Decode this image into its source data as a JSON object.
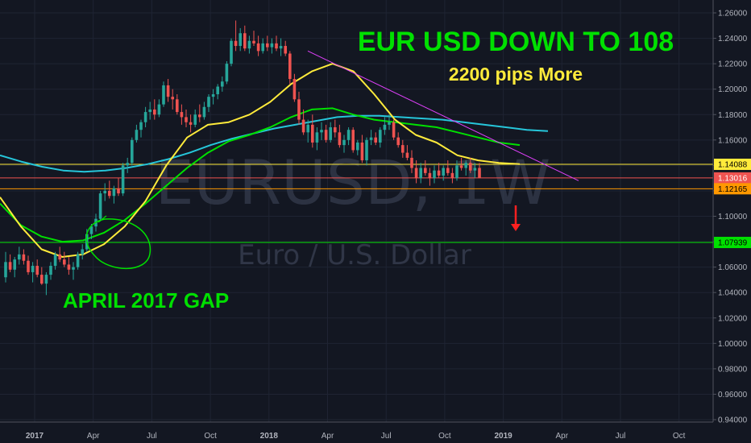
{
  "chart_data": {
    "type": "candlestick",
    "symbol": "EURUSD, 1W",
    "watermark_title": "EURUSD, 1W",
    "watermark_subtitle": "Euro / U.S. Dollar",
    "headline": "EUR USD DOWN TO 108",
    "subheadline": "2200 pips More",
    "gap_label": "APRIL 2017 GAP",
    "y_ticks": [
      "1.26000",
      "1.24000",
      "1.22000",
      "1.20000",
      "1.18000",
      "1.16000",
      "1.14000",
      "1.12000",
      "1.10000",
      "1.08000",
      "1.06000",
      "1.04000",
      "1.02000",
      "1.00000",
      "0.98000",
      "0.96000",
      "0.94000"
    ],
    "ylim": [
      0.94,
      1.26
    ],
    "x_ticks": [
      "2017",
      "Apr",
      "Jul",
      "Oct",
      "2018",
      "Apr",
      "Jul",
      "Oct",
      "2019",
      "Apr",
      "Jul",
      "Oct"
    ],
    "bold_x_ticks": [
      "2017",
      "2018",
      "2019"
    ],
    "price_labels": [
      {
        "value": 1.14088,
        "text": "1.14088",
        "color": "#ffeb3b",
        "text_color": "#000000"
      },
      {
        "value": 1.13016,
        "text": "1.13016",
        "color": "#ef5350",
        "text_color": "#ffffff"
      },
      {
        "value": 1.12165,
        "text": "1.12165",
        "color": "#ff9800",
        "text_color": "#000000"
      },
      {
        "value": 1.07939,
        "text": "1.07939",
        "color": "#00e000",
        "text_color": "#000000"
      }
    ],
    "horizontal_lines": [
      {
        "value": 1.14088,
        "color": "#ffeb3b"
      },
      {
        "value": 1.13016,
        "color": "#ef5350"
      },
      {
        "value": 1.12165,
        "color": "#ff9800"
      },
      {
        "value": 1.07939,
        "color": "#00e000"
      }
    ],
    "candles": [
      [
        1.052,
        1.072,
        1.048,
        1.064
      ],
      [
        1.064,
        1.07,
        1.056,
        1.058
      ],
      [
        1.058,
        1.068,
        1.052,
        1.066
      ],
      [
        1.066,
        1.076,
        1.062,
        1.07
      ],
      [
        1.07,
        1.074,
        1.062,
        1.065
      ],
      [
        1.065,
        1.069,
        1.054,
        1.056
      ],
      [
        1.056,
        1.064,
        1.048,
        1.061
      ],
      [
        1.061,
        1.066,
        1.052,
        1.054
      ],
      [
        1.054,
        1.06,
        1.046,
        1.047
      ],
      [
        1.047,
        1.056,
        1.038,
        1.054
      ],
      [
        1.054,
        1.064,
        1.05,
        1.061
      ],
      [
        1.061,
        1.072,
        1.058,
        1.07
      ],
      [
        1.07,
        1.076,
        1.064,
        1.066
      ],
      [
        1.066,
        1.072,
        1.06,
        1.062
      ],
      [
        1.062,
        1.068,
        1.054,
        1.058
      ],
      [
        1.058,
        1.064,
        1.05,
        1.06
      ],
      [
        1.06,
        1.072,
        1.058,
        1.07
      ],
      [
        1.07,
        1.078,
        1.066,
        1.074
      ],
      [
        1.074,
        1.09,
        1.072,
        1.086
      ],
      [
        1.086,
        1.094,
        1.082,
        1.092
      ],
      [
        1.092,
        1.102,
        1.088,
        1.098
      ],
      [
        1.098,
        1.12,
        1.096,
        1.118
      ],
      [
        1.118,
        1.126,
        1.112,
        1.12
      ],
      [
        1.12,
        1.128,
        1.114,
        1.116
      ],
      [
        1.116,
        1.124,
        1.11,
        1.122
      ],
      [
        1.122,
        1.13,
        1.116,
        1.118
      ],
      [
        1.118,
        1.142,
        1.116,
        1.14
      ],
      [
        1.14,
        1.146,
        1.134,
        1.142
      ],
      [
        1.142,
        1.162,
        1.14,
        1.16
      ],
      [
        1.16,
        1.172,
        1.158,
        1.168
      ],
      [
        1.168,
        1.176,
        1.162,
        1.174
      ],
      [
        1.174,
        1.186,
        1.17,
        1.182
      ],
      [
        1.182,
        1.19,
        1.176,
        1.184
      ],
      [
        1.184,
        1.192,
        1.176,
        1.18
      ],
      [
        1.18,
        1.192,
        1.178,
        1.188
      ],
      [
        1.188,
        1.206,
        1.186,
        1.203
      ],
      [
        1.203,
        1.208,
        1.19,
        1.194
      ],
      [
        1.194,
        1.2,
        1.184,
        1.192
      ],
      [
        1.192,
        1.196,
        1.18,
        1.182
      ],
      [
        1.182,
        1.188,
        1.172,
        1.178
      ],
      [
        1.178,
        1.184,
        1.17,
        1.174
      ],
      [
        1.174,
        1.18,
        1.166,
        1.172
      ],
      [
        1.172,
        1.184,
        1.17,
        1.18
      ],
      [
        1.18,
        1.188,
        1.174,
        1.178
      ],
      [
        1.178,
        1.19,
        1.176,
        1.186
      ],
      [
        1.186,
        1.196,
        1.182,
        1.194
      ],
      [
        1.194,
        1.2,
        1.188,
        1.196
      ],
      [
        1.196,
        1.204,
        1.192,
        1.202
      ],
      [
        1.202,
        1.21,
        1.198,
        1.206
      ],
      [
        1.206,
        1.222,
        1.204,
        1.22
      ],
      [
        1.22,
        1.24,
        1.218,
        1.238
      ],
      [
        1.238,
        1.254,
        1.23,
        1.234
      ],
      [
        1.234,
        1.248,
        1.23,
        1.244
      ],
      [
        1.244,
        1.25,
        1.23,
        1.232
      ],
      [
        1.232,
        1.242,
        1.228,
        1.238
      ],
      [
        1.238,
        1.246,
        1.234,
        1.236
      ],
      [
        1.236,
        1.242,
        1.226,
        1.23
      ],
      [
        1.23,
        1.24,
        1.228,
        1.236
      ],
      [
        1.236,
        1.242,
        1.23,
        1.233
      ],
      [
        1.233,
        1.24,
        1.228,
        1.236
      ],
      [
        1.236,
        1.242,
        1.23,
        1.232
      ],
      [
        1.232,
        1.24,
        1.226,
        1.234
      ],
      [
        1.234,
        1.238,
        1.226,
        1.228
      ],
      [
        1.228,
        1.23,
        1.204,
        1.208
      ],
      [
        1.208,
        1.212,
        1.19,
        1.192
      ],
      [
        1.192,
        1.198,
        1.172,
        1.176
      ],
      [
        1.176,
        1.184,
        1.164,
        1.166
      ],
      [
        1.166,
        1.176,
        1.158,
        1.172
      ],
      [
        1.172,
        1.18,
        1.154,
        1.158
      ],
      [
        1.158,
        1.17,
        1.152,
        1.166
      ],
      [
        1.166,
        1.174,
        1.16,
        1.168
      ],
      [
        1.168,
        1.172,
        1.158,
        1.16
      ],
      [
        1.16,
        1.174,
        1.158,
        1.17
      ],
      [
        1.17,
        1.176,
        1.162,
        1.166
      ],
      [
        1.166,
        1.172,
        1.154,
        1.156
      ],
      [
        1.156,
        1.164,
        1.15,
        1.16
      ],
      [
        1.16,
        1.17,
        1.156,
        1.168
      ],
      [
        1.168,
        1.17,
        1.15,
        1.152
      ],
      [
        1.152,
        1.16,
        1.148,
        1.158
      ],
      [
        1.158,
        1.164,
        1.142,
        1.144
      ],
      [
        1.144,
        1.162,
        1.14,
        1.16
      ],
      [
        1.16,
        1.168,
        1.156,
        1.162
      ],
      [
        1.162,
        1.166,
        1.156,
        1.158
      ],
      [
        1.158,
        1.17,
        1.154,
        1.168
      ],
      [
        1.168,
        1.178,
        1.164,
        1.172
      ],
      [
        1.172,
        1.18,
        1.168,
        1.174
      ],
      [
        1.174,
        1.176,
        1.16,
        1.162
      ],
      [
        1.162,
        1.166,
        1.154,
        1.156
      ],
      [
        1.156,
        1.16,
        1.146,
        1.15
      ],
      [
        1.15,
        1.156,
        1.144,
        1.146
      ],
      [
        1.146,
        1.152,
        1.134,
        1.138
      ],
      [
        1.138,
        1.144,
        1.126,
        1.13
      ],
      [
        1.13,
        1.142,
        1.126,
        1.138
      ],
      [
        1.138,
        1.144,
        1.132,
        1.134
      ],
      [
        1.134,
        1.138,
        1.124,
        1.13
      ],
      [
        1.13,
        1.14,
        1.126,
        1.136
      ],
      [
        1.136,
        1.142,
        1.13,
        1.132
      ],
      [
        1.132,
        1.14,
        1.128,
        1.138
      ],
      [
        1.138,
        1.144,
        1.132,
        1.134
      ],
      [
        1.134,
        1.138,
        1.126,
        1.13
      ],
      [
        1.13,
        1.144,
        1.128,
        1.14
      ],
      [
        1.14,
        1.146,
        1.136,
        1.138
      ],
      [
        1.138,
        1.144,
        1.132,
        1.142
      ],
      [
        1.142,
        1.146,
        1.134,
        1.136
      ],
      [
        1.136,
        1.142,
        1.13,
        1.138
      ],
      [
        1.138,
        1.142,
        1.13,
        1.13
      ]
    ],
    "moving_averages": [
      {
        "color": "#26c6da",
        "values": [
          1.148,
          1.143,
          1.139,
          1.136,
          1.135,
          1.136,
          1.138,
          1.141,
          1.145,
          1.15,
          1.156,
          1.161,
          1.165,
          1.169,
          1.172,
          1.175,
          1.178,
          1.179,
          1.179,
          1.178,
          1.177,
          1.176,
          1.174,
          1.172,
          1.17,
          1.168,
          1.167
        ]
      },
      {
        "color": "#00e000",
        "values": [
          1.11,
          1.093,
          1.084,
          1.08,
          1.081,
          1.087,
          1.097,
          1.11,
          1.124,
          1.138,
          1.15,
          1.159,
          1.164,
          1.17,
          1.178,
          1.184,
          1.185,
          1.18,
          1.176,
          1.174,
          1.172,
          1.17,
          1.166,
          1.162,
          1.158,
          1.156
        ]
      },
      {
        "color": "#ffeb3b",
        "values": [
          1.115,
          1.092,
          1.074,
          1.068,
          1.07,
          1.078,
          1.092,
          1.112,
          1.14,
          1.162,
          1.172,
          1.174,
          1.18,
          1.19,
          1.204,
          1.214,
          1.22,
          1.214,
          1.196,
          1.176,
          1.164,
          1.158,
          1.148,
          1.144,
          1.142,
          1.141
        ]
      }
    ],
    "trendline": {
      "color": "#e040fb"
    },
    "arrow": {
      "color": "#ff2020"
    },
    "gap_ellipse": {
      "color": "#00e000"
    }
  }
}
